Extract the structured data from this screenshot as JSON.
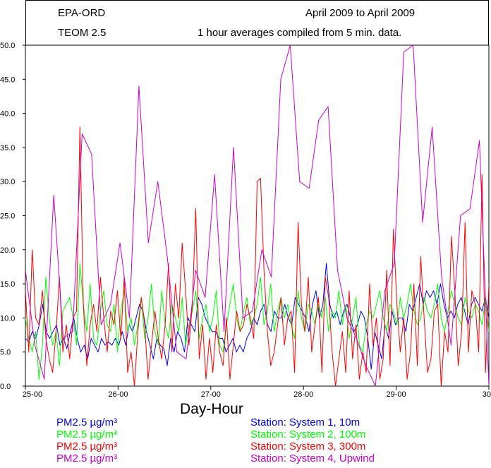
{
  "header": {
    "agency": "EPA-ORD",
    "instrument": "TEOM 2.5",
    "date_range": "April 2009  to April 2009",
    "description": "1 hour averages compiled from 5 min. data."
  },
  "chart_data": {
    "type": "line",
    "title": "",
    "xlabel": "Day-Hour",
    "ylabel": "",
    "ylim": [
      0,
      50
    ],
    "xlim": [
      25,
      30
    ],
    "yticks": [
      "0.0",
      "5.0",
      "10.0",
      "15.0",
      "20.0",
      "25.0",
      "30.0",
      "35.0",
      "40.0",
      "45.0",
      "50.0"
    ],
    "xticks": [
      "25-00",
      "26-00",
      "27-00",
      "28-00",
      "29-00",
      "30"
    ],
    "series": [
      {
        "name": "Station: System 1, 10m",
        "label": "PM2.5  µg/m³",
        "color": "#0000ff",
        "values": [
          7,
          6.5,
          8,
          7,
          9,
          12,
          8,
          7,
          8,
          9,
          6,
          7,
          5.5,
          8,
          10,
          7,
          5,
          6,
          4,
          7,
          6,
          5,
          7,
          6,
          6.5,
          6,
          7,
          6,
          8,
          6,
          9,
          8,
          10,
          12,
          11,
          8,
          6,
          4,
          7,
          6,
          5.5,
          3,
          7,
          5,
          8,
          7,
          5,
          10,
          9,
          8,
          13,
          12,
          10,
          9,
          8,
          8,
          7,
          7,
          5,
          6,
          7,
          5,
          6,
          5,
          7,
          8,
          10,
          9,
          11,
          12,
          9,
          8,
          11,
          10,
          10,
          12,
          10,
          9,
          13,
          12,
          11,
          10,
          8,
          12,
          14,
          10,
          12,
          18,
          12,
          10,
          11,
          9,
          11,
          12,
          10,
          8,
          9,
          11,
          10,
          7,
          2.5,
          8,
          6,
          4,
          9,
          7,
          11,
          9,
          10,
          10,
          8,
          12,
          11,
          13,
          15,
          12,
          14,
          13,
          14,
          12,
          15,
          12,
          10,
          11,
          10,
          12,
          13,
          11,
          9,
          12,
          13,
          12,
          11,
          13,
          10
        ]
      },
      {
        "name": "Station: System 2, 100m",
        "label": "PM2.5  µg/m³",
        "color": "#00ff00",
        "values": [
          10,
          7,
          5,
          8,
          1,
          6,
          16,
          10,
          6,
          8,
          3,
          11,
          12,
          13,
          10,
          6,
          18,
          12,
          8,
          15,
          7,
          6,
          11,
          14,
          9,
          8,
          12,
          5,
          11,
          14,
          8,
          10,
          6,
          9,
          13,
          7,
          10,
          15,
          8,
          6,
          14,
          9,
          7,
          12,
          10,
          8,
          13,
          6,
          9,
          11,
          14,
          7,
          10,
          12,
          8,
          10,
          14,
          6,
          5,
          9,
          12,
          15,
          10,
          8,
          11,
          13,
          9,
          10,
          12,
          16,
          9,
          11,
          15,
          8,
          11,
          13,
          10,
          12,
          9,
          7,
          14,
          10,
          8,
          12,
          11,
          9,
          12,
          10,
          13,
          8,
          11,
          10,
          14,
          9,
          12,
          7,
          10,
          13,
          6,
          5,
          9,
          11,
          10,
          12,
          14,
          10,
          8,
          12,
          11,
          9,
          13,
          10,
          12,
          15,
          11,
          9,
          10,
          13,
          11,
          10,
          12,
          15,
          10,
          8,
          11,
          14,
          12,
          10,
          9,
          13,
          11,
          10,
          12,
          11,
          9,
          13,
          8
        ]
      },
      {
        "name": "Station: System 3, 300m",
        "label": "PM2.5  µg/m³",
        "color": "#ff0000",
        "values": [
          14,
          5,
          20,
          10,
          9,
          14,
          7,
          4,
          2,
          8,
          16,
          5,
          9,
          4,
          10,
          11,
          38,
          12,
          3,
          9,
          12,
          8,
          16,
          10,
          5,
          11,
          9,
          14,
          7,
          16,
          2,
          5,
          0,
          8,
          13,
          9,
          1,
          6,
          11,
          7,
          4,
          9,
          18,
          5,
          15,
          10,
          21,
          14,
          6,
          12,
          26,
          4,
          9,
          1,
          7,
          2,
          9,
          5,
          3,
          10,
          1,
          6,
          11,
          8,
          9,
          12,
          10,
          7,
          30,
          30.5,
          17,
          8,
          3,
          5,
          9,
          13,
          6,
          10,
          11,
          2,
          24,
          12,
          8,
          16,
          5,
          9,
          13,
          2,
          16,
          13,
          5,
          0,
          4,
          8,
          2,
          14,
          4,
          9,
          1,
          5,
          2,
          15,
          6,
          10,
          1,
          4,
          17,
          3,
          23,
          12,
          5,
          10,
          1,
          5,
          15,
          3,
          19,
          10,
          2,
          4,
          11,
          12,
          0,
          8,
          5,
          22,
          14,
          3,
          8,
          24,
          5,
          14,
          12,
          5,
          31,
          2,
          15
        ]
      },
      {
        "name": "Station: System 4, Upwind",
        "label": "PM2.5  µg/m³",
        "color": "#cc00cc",
        "values": [
          17,
          6,
          1,
          28,
          7,
          8,
          37,
          34,
          9,
          12,
          21,
          10,
          44,
          21,
          30,
          19,
          5,
          4,
          17,
          13,
          31,
          8,
          35,
          10,
          11,
          20,
          16,
          45,
          50,
          30,
          29,
          39,
          41,
          17,
          10,
          7,
          3,
          0,
          14,
          18,
          49,
          50,
          24,
          38,
          16,
          6,
          25,
          26,
          36,
          0
        ]
      }
    ]
  }
}
